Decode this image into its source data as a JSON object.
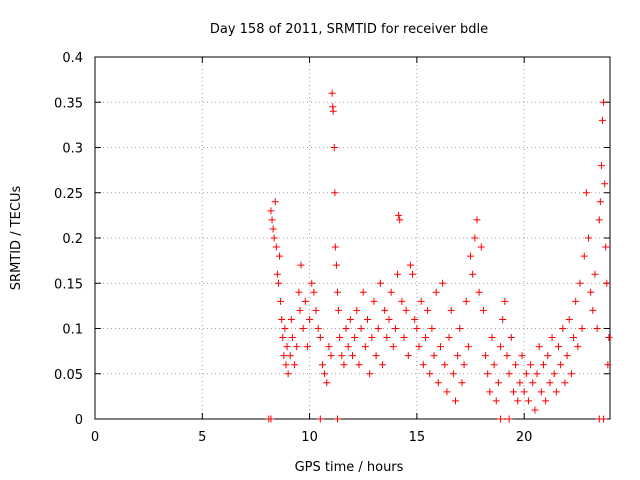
{
  "chart_data": {
    "type": "scatter",
    "title": "Day 158 of 2011, SRMTID for receiver bdle",
    "xlabel": "GPS time / hours",
    "ylabel": "SRMTID / TECUs",
    "xlim": [
      0,
      24
    ],
    "ylim": [
      0,
      0.4
    ],
    "xticks": [
      0,
      5,
      10,
      15,
      20
    ],
    "xtick_labels": [
      "0",
      "5",
      "10",
      "15",
      "20"
    ],
    "yticks": [
      0,
      0.05,
      0.1,
      0.15,
      0.2,
      0.25,
      0.3,
      0.35,
      0.4
    ],
    "ytick_labels": [
      "0",
      "0.05",
      "0.1",
      "0.15",
      "0.2",
      "0.25",
      "0.3",
      "0.35",
      "0.4"
    ],
    "grid": true,
    "marker": "+",
    "color": "#ff0000",
    "series": [
      {
        "name": "SRMTID",
        "points": [
          [
            8.1,
            0.0
          ],
          [
            8.2,
            0.0
          ],
          [
            10.5,
            0.0
          ],
          [
            11.3,
            0.0
          ],
          [
            18.9,
            0.0
          ],
          [
            19.3,
            0.0
          ],
          [
            23.5,
            0.0
          ],
          [
            23.7,
            0.0
          ],
          [
            8.2,
            0.23
          ],
          [
            8.25,
            0.22
          ],
          [
            8.3,
            0.21
          ],
          [
            8.35,
            0.2
          ],
          [
            8.4,
            0.24
          ],
          [
            8.45,
            0.19
          ],
          [
            8.5,
            0.16
          ],
          [
            8.55,
            0.15
          ],
          [
            8.6,
            0.18
          ],
          [
            8.65,
            0.13
          ],
          [
            8.7,
            0.11
          ],
          [
            8.75,
            0.09
          ],
          [
            8.8,
            0.07
          ],
          [
            8.85,
            0.1
          ],
          [
            8.9,
            0.06
          ],
          [
            8.95,
            0.08
          ],
          [
            9.0,
            0.05
          ],
          [
            9.1,
            0.07
          ],
          [
            9.15,
            0.11
          ],
          [
            9.2,
            0.09
          ],
          [
            9.3,
            0.06
          ],
          [
            9.4,
            0.08
          ],
          [
            9.5,
            0.14
          ],
          [
            9.55,
            0.12
          ],
          [
            9.6,
            0.17
          ],
          [
            9.7,
            0.1
          ],
          [
            9.8,
            0.13
          ],
          [
            9.9,
            0.08
          ],
          [
            10.0,
            0.11
          ],
          [
            10.1,
            0.15
          ],
          [
            10.2,
            0.14
          ],
          [
            10.3,
            0.12
          ],
          [
            10.4,
            0.1
          ],
          [
            10.5,
            0.09
          ],
          [
            10.6,
            0.06
          ],
          [
            10.7,
            0.05
          ],
          [
            10.8,
            0.04
          ],
          [
            10.9,
            0.08
          ],
          [
            11.0,
            0.07
          ],
          [
            11.05,
            0.36
          ],
          [
            11.08,
            0.345
          ],
          [
            11.1,
            0.34
          ],
          [
            11.15,
            0.3
          ],
          [
            11.18,
            0.25
          ],
          [
            11.2,
            0.19
          ],
          [
            11.25,
            0.17
          ],
          [
            11.3,
            0.14
          ],
          [
            11.35,
            0.12
          ],
          [
            11.4,
            0.09
          ],
          [
            11.5,
            0.07
          ],
          [
            11.6,
            0.06
          ],
          [
            11.7,
            0.1
          ],
          [
            11.8,
            0.08
          ],
          [
            11.9,
            0.11
          ],
          [
            12.0,
            0.07
          ],
          [
            12.1,
            0.09
          ],
          [
            12.2,
            0.12
          ],
          [
            12.3,
            0.06
          ],
          [
            12.4,
            0.1
          ],
          [
            12.5,
            0.14
          ],
          [
            12.6,
            0.08
          ],
          [
            12.7,
            0.11
          ],
          [
            12.8,
            0.05
          ],
          [
            12.9,
            0.09
          ],
          [
            13.0,
            0.13
          ],
          [
            13.1,
            0.07
          ],
          [
            13.2,
            0.1
          ],
          [
            13.3,
            0.15
          ],
          [
            13.4,
            0.06
          ],
          [
            13.5,
            0.12
          ],
          [
            13.6,
            0.09
          ],
          [
            13.7,
            0.11
          ],
          [
            13.8,
            0.14
          ],
          [
            13.9,
            0.08
          ],
          [
            14.0,
            0.1
          ],
          [
            14.1,
            0.16
          ],
          [
            14.15,
            0.225
          ],
          [
            14.2,
            0.22
          ],
          [
            14.3,
            0.13
          ],
          [
            14.4,
            0.09
          ],
          [
            14.5,
            0.12
          ],
          [
            14.6,
            0.07
          ],
          [
            14.7,
            0.17
          ],
          [
            14.8,
            0.16
          ],
          [
            14.9,
            0.11
          ],
          [
            15.0,
            0.1
          ],
          [
            15.1,
            0.08
          ],
          [
            15.2,
            0.13
          ],
          [
            15.3,
            0.06
          ],
          [
            15.4,
            0.09
          ],
          [
            15.5,
            0.12
          ],
          [
            15.6,
            0.05
          ],
          [
            15.7,
            0.1
          ],
          [
            15.8,
            0.07
          ],
          [
            15.9,
            0.14
          ],
          [
            16.0,
            0.04
          ],
          [
            16.1,
            0.08
          ],
          [
            16.2,
            0.15
          ],
          [
            16.3,
            0.06
          ],
          [
            16.4,
            0.03
          ],
          [
            16.5,
            0.09
          ],
          [
            16.6,
            0.12
          ],
          [
            16.7,
            0.05
          ],
          [
            16.8,
            0.02
          ],
          [
            16.9,
            0.07
          ],
          [
            17.0,
            0.1
          ],
          [
            17.1,
            0.04
          ],
          [
            17.2,
            0.06
          ],
          [
            17.3,
            0.13
          ],
          [
            17.4,
            0.08
          ],
          [
            17.5,
            0.18
          ],
          [
            17.6,
            0.16
          ],
          [
            17.7,
            0.2
          ],
          [
            17.8,
            0.22
          ],
          [
            17.9,
            0.14
          ],
          [
            18.0,
            0.19
          ],
          [
            18.1,
            0.12
          ],
          [
            18.2,
            0.07
          ],
          [
            18.3,
            0.05
          ],
          [
            18.4,
            0.03
          ],
          [
            18.5,
            0.09
          ],
          [
            18.6,
            0.06
          ],
          [
            18.7,
            0.02
          ],
          [
            18.8,
            0.04
          ],
          [
            18.9,
            0.08
          ],
          [
            19.0,
            0.11
          ],
          [
            19.1,
            0.13
          ],
          [
            19.2,
            0.07
          ],
          [
            19.3,
            0.05
          ],
          [
            19.4,
            0.09
          ],
          [
            19.5,
            0.03
          ],
          [
            19.6,
            0.06
          ],
          [
            19.7,
            0.02
          ],
          [
            19.8,
            0.04
          ],
          [
            19.9,
            0.07
          ],
          [
            20.0,
            0.03
          ],
          [
            20.1,
            0.05
          ],
          [
            20.2,
            0.02
          ],
          [
            20.3,
            0.06
          ],
          [
            20.4,
            0.04
          ],
          [
            20.5,
            0.01
          ],
          [
            20.6,
            0.05
          ],
          [
            20.7,
            0.08
          ],
          [
            20.8,
            0.03
          ],
          [
            20.9,
            0.06
          ],
          [
            21.0,
            0.02
          ],
          [
            21.1,
            0.07
          ],
          [
            21.2,
            0.04
          ],
          [
            21.3,
            0.09
          ],
          [
            21.4,
            0.05
          ],
          [
            21.5,
            0.03
          ],
          [
            21.6,
            0.08
          ],
          [
            21.7,
            0.06
          ],
          [
            21.8,
            0.1
          ],
          [
            21.9,
            0.04
          ],
          [
            22.0,
            0.07
          ],
          [
            22.1,
            0.11
          ],
          [
            22.2,
            0.05
          ],
          [
            22.3,
            0.09
          ],
          [
            22.4,
            0.13
          ],
          [
            22.5,
            0.08
          ],
          [
            22.6,
            0.15
          ],
          [
            22.7,
            0.1
          ],
          [
            22.8,
            0.18
          ],
          [
            22.9,
            0.25
          ],
          [
            23.0,
            0.2
          ],
          [
            23.1,
            0.14
          ],
          [
            23.2,
            0.12
          ],
          [
            23.3,
            0.16
          ],
          [
            23.4,
            0.1
          ],
          [
            23.5,
            0.22
          ],
          [
            23.55,
            0.24
          ],
          [
            23.6,
            0.28
          ],
          [
            23.65,
            0.33
          ],
          [
            23.7,
            0.35
          ],
          [
            23.75,
            0.26
          ],
          [
            23.8,
            0.19
          ],
          [
            23.85,
            0.15
          ],
          [
            23.9,
            0.06
          ],
          [
            23.95,
            0.09
          ]
        ]
      }
    ]
  }
}
